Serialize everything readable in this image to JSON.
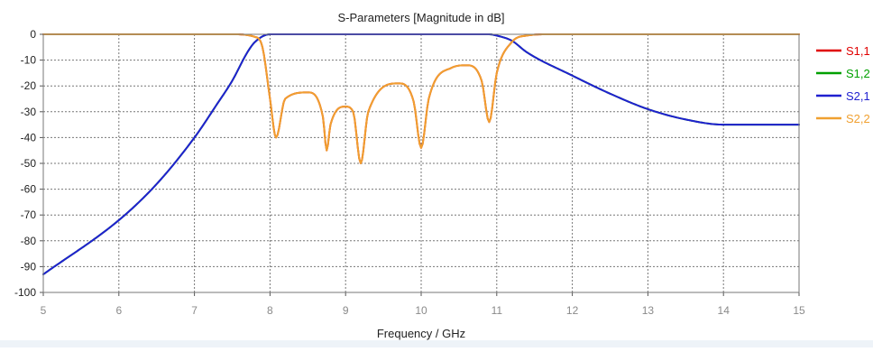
{
  "chart_data": {
    "type": "line",
    "title": "S-Parameters [Magnitude in dB]",
    "xlabel": "Frequency / GHz",
    "ylabel": "",
    "xlim": [
      5,
      15
    ],
    "ylim": [
      -100,
      0
    ],
    "xticks": [
      "5",
      "6",
      "7",
      "8",
      "9",
      "10",
      "11",
      "12",
      "13",
      "14",
      "15"
    ],
    "yticks": [
      "0",
      "-10",
      "-20",
      "-30",
      "-40",
      "-50",
      "-60",
      "-70",
      "-80",
      "-90",
      "-100"
    ],
    "grid": true,
    "legend_position": "right",
    "series": [
      {
        "name": "S1,1",
        "color": "#e00000",
        "points": [
          [
            5,
            0
          ],
          [
            7.5,
            0
          ],
          [
            7.8,
            -1
          ],
          [
            7.9,
            -5
          ],
          [
            8.0,
            -25
          ],
          [
            8.08,
            -40
          ],
          [
            8.2,
            -25
          ],
          [
            8.5,
            -22.5
          ],
          [
            8.7,
            -32
          ],
          [
            8.75,
            -45
          ],
          [
            8.8,
            -35
          ],
          [
            9.0,
            -28
          ],
          [
            9.1,
            -30
          ],
          [
            9.2,
            -50
          ],
          [
            9.3,
            -30
          ],
          [
            9.7,
            -19
          ],
          [
            9.9,
            -26
          ],
          [
            10.0,
            -44
          ],
          [
            10.1,
            -25
          ],
          [
            10.4,
            -13
          ],
          [
            10.6,
            -12
          ],
          [
            10.8,
            -18
          ],
          [
            10.9,
            -34
          ],
          [
            11.0,
            -15
          ],
          [
            11.2,
            -3
          ],
          [
            11.4,
            -0.5
          ],
          [
            11.7,
            0
          ],
          [
            15,
            0
          ]
        ]
      },
      {
        "name": "S1,2",
        "color": "#00a000",
        "points": [
          [
            5,
            -93
          ],
          [
            6,
            -72
          ],
          [
            6.5,
            -58
          ],
          [
            7,
            -40
          ],
          [
            7.3,
            -27
          ],
          [
            7.5,
            -18
          ],
          [
            7.7,
            -7
          ],
          [
            7.8,
            -3
          ],
          [
            8.0,
            0
          ],
          [
            10.9,
            0
          ],
          [
            11.0,
            -0.5
          ],
          [
            11.2,
            -2.5
          ],
          [
            11.4,
            -7
          ],
          [
            12,
            -16
          ],
          [
            12.5,
            -23
          ],
          [
            13,
            -29
          ],
          [
            13.5,
            -33
          ],
          [
            14,
            -35
          ],
          [
            15,
            -35
          ]
        ]
      },
      {
        "name": "S2,1",
        "color": "#2020d0",
        "points": [
          [
            5,
            -93
          ],
          [
            6,
            -72
          ],
          [
            6.5,
            -58
          ],
          [
            7,
            -40
          ],
          [
            7.3,
            -27
          ],
          [
            7.5,
            -18
          ],
          [
            7.7,
            -7
          ],
          [
            7.8,
            -3
          ],
          [
            8.0,
            0
          ],
          [
            10.9,
            0
          ],
          [
            11.0,
            -0.5
          ],
          [
            11.2,
            -2.5
          ],
          [
            11.4,
            -7
          ],
          [
            12,
            -16
          ],
          [
            12.5,
            -23
          ],
          [
            13,
            -29
          ],
          [
            13.5,
            -33
          ],
          [
            14,
            -35
          ],
          [
            15,
            -35
          ]
        ]
      },
      {
        "name": "S2,2",
        "color": "#f0a030",
        "points": [
          [
            5,
            0
          ],
          [
            7.5,
            0
          ],
          [
            7.8,
            -1
          ],
          [
            7.9,
            -5
          ],
          [
            8.0,
            -25
          ],
          [
            8.08,
            -40
          ],
          [
            8.2,
            -25
          ],
          [
            8.5,
            -22.5
          ],
          [
            8.7,
            -32
          ],
          [
            8.75,
            -45
          ],
          [
            8.8,
            -35
          ],
          [
            9.0,
            -28
          ],
          [
            9.1,
            -30
          ],
          [
            9.2,
            -50
          ],
          [
            9.3,
            -30
          ],
          [
            9.7,
            -19
          ],
          [
            9.9,
            -26
          ],
          [
            10.0,
            -44
          ],
          [
            10.1,
            -25
          ],
          [
            10.4,
            -13
          ],
          [
            10.6,
            -12
          ],
          [
            10.8,
            -18
          ],
          [
            10.9,
            -34
          ],
          [
            11.0,
            -15
          ],
          [
            11.2,
            -3
          ],
          [
            11.4,
            -0.5
          ],
          [
            11.7,
            0
          ],
          [
            15,
            0
          ]
        ]
      }
    ]
  }
}
